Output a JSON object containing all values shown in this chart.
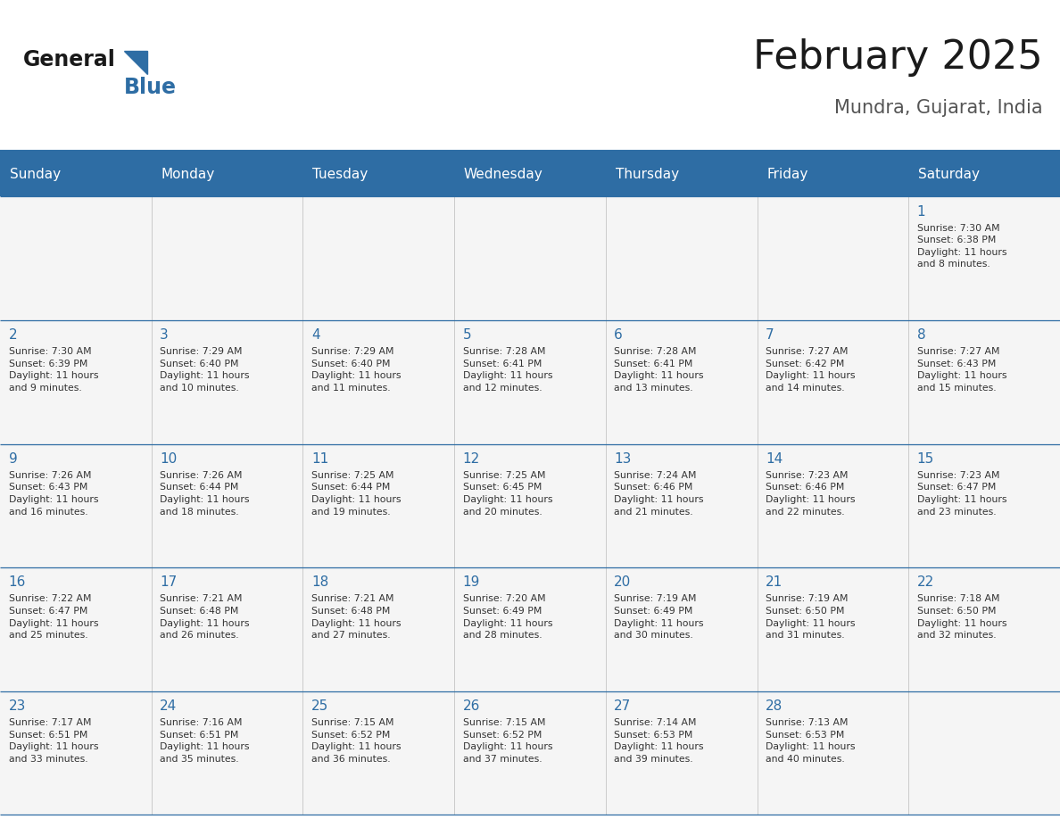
{
  "title": "February 2025",
  "subtitle": "Mundra, Gujarat, India",
  "header_bg_color": "#2E6DA4",
  "header_text_color": "#FFFFFF",
  "cell_bg_color": "#F5F5F5",
  "day_number_color": "#2E6DA4",
  "cell_text_color": "#333333",
  "border_color": "#2E6DA4",
  "days_of_week": [
    "Sunday",
    "Monday",
    "Tuesday",
    "Wednesday",
    "Thursday",
    "Friday",
    "Saturday"
  ],
  "logo_triangle_color": "#2E6DA4",
  "calendar_data": [
    [
      null,
      null,
      null,
      null,
      null,
      null,
      {
        "day": "1",
        "sunrise": "7:30 AM",
        "sunset": "6:38 PM",
        "daylight": "11 hours\nand 8 minutes."
      }
    ],
    [
      {
        "day": "2",
        "sunrise": "7:30 AM",
        "sunset": "6:39 PM",
        "daylight": "11 hours\nand 9 minutes."
      },
      {
        "day": "3",
        "sunrise": "7:29 AM",
        "sunset": "6:40 PM",
        "daylight": "11 hours\nand 10 minutes."
      },
      {
        "day": "4",
        "sunrise": "7:29 AM",
        "sunset": "6:40 PM",
        "daylight": "11 hours\nand 11 minutes."
      },
      {
        "day": "5",
        "sunrise": "7:28 AM",
        "sunset": "6:41 PM",
        "daylight": "11 hours\nand 12 minutes."
      },
      {
        "day": "6",
        "sunrise": "7:28 AM",
        "sunset": "6:41 PM",
        "daylight": "11 hours\nand 13 minutes."
      },
      {
        "day": "7",
        "sunrise": "7:27 AM",
        "sunset": "6:42 PM",
        "daylight": "11 hours\nand 14 minutes."
      },
      {
        "day": "8",
        "sunrise": "7:27 AM",
        "sunset": "6:43 PM",
        "daylight": "11 hours\nand 15 minutes."
      }
    ],
    [
      {
        "day": "9",
        "sunrise": "7:26 AM",
        "sunset": "6:43 PM",
        "daylight": "11 hours\nand 16 minutes."
      },
      {
        "day": "10",
        "sunrise": "7:26 AM",
        "sunset": "6:44 PM",
        "daylight": "11 hours\nand 18 minutes."
      },
      {
        "day": "11",
        "sunrise": "7:25 AM",
        "sunset": "6:44 PM",
        "daylight": "11 hours\nand 19 minutes."
      },
      {
        "day": "12",
        "sunrise": "7:25 AM",
        "sunset": "6:45 PM",
        "daylight": "11 hours\nand 20 minutes."
      },
      {
        "day": "13",
        "sunrise": "7:24 AM",
        "sunset": "6:46 PM",
        "daylight": "11 hours\nand 21 minutes."
      },
      {
        "day": "14",
        "sunrise": "7:23 AM",
        "sunset": "6:46 PM",
        "daylight": "11 hours\nand 22 minutes."
      },
      {
        "day": "15",
        "sunrise": "7:23 AM",
        "sunset": "6:47 PM",
        "daylight": "11 hours\nand 23 minutes."
      }
    ],
    [
      {
        "day": "16",
        "sunrise": "7:22 AM",
        "sunset": "6:47 PM",
        "daylight": "11 hours\nand 25 minutes."
      },
      {
        "day": "17",
        "sunrise": "7:21 AM",
        "sunset": "6:48 PM",
        "daylight": "11 hours\nand 26 minutes."
      },
      {
        "day": "18",
        "sunrise": "7:21 AM",
        "sunset": "6:48 PM",
        "daylight": "11 hours\nand 27 minutes."
      },
      {
        "day": "19",
        "sunrise": "7:20 AM",
        "sunset": "6:49 PM",
        "daylight": "11 hours\nand 28 minutes."
      },
      {
        "day": "20",
        "sunrise": "7:19 AM",
        "sunset": "6:49 PM",
        "daylight": "11 hours\nand 30 minutes."
      },
      {
        "day": "21",
        "sunrise": "7:19 AM",
        "sunset": "6:50 PM",
        "daylight": "11 hours\nand 31 minutes."
      },
      {
        "day": "22",
        "sunrise": "7:18 AM",
        "sunset": "6:50 PM",
        "daylight": "11 hours\nand 32 minutes."
      }
    ],
    [
      {
        "day": "23",
        "sunrise": "7:17 AM",
        "sunset": "6:51 PM",
        "daylight": "11 hours\nand 33 minutes."
      },
      {
        "day": "24",
        "sunrise": "7:16 AM",
        "sunset": "6:51 PM",
        "daylight": "11 hours\nand 35 minutes."
      },
      {
        "day": "25",
        "sunrise": "7:15 AM",
        "sunset": "6:52 PM",
        "daylight": "11 hours\nand 36 minutes."
      },
      {
        "day": "26",
        "sunrise": "7:15 AM",
        "sunset": "6:52 PM",
        "daylight": "11 hours\nand 37 minutes."
      },
      {
        "day": "27",
        "sunrise": "7:14 AM",
        "sunset": "6:53 PM",
        "daylight": "11 hours\nand 39 minutes."
      },
      {
        "day": "28",
        "sunrise": "7:13 AM",
        "sunset": "6:53 PM",
        "daylight": "11 hours\nand 40 minutes."
      },
      null
    ]
  ]
}
